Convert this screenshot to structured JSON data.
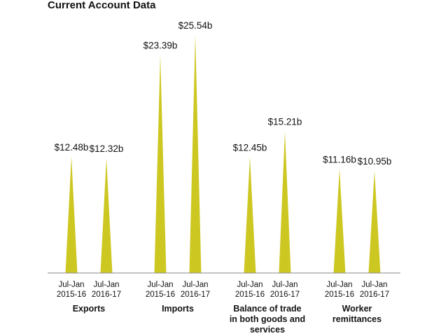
{
  "chart_data": {
    "type": "bar",
    "title": "Current Account Data",
    "categories": [
      [
        "Exports"
      ],
      [
        "Imports"
      ],
      [
        "Balance of trade",
        "in both goods and",
        "services"
      ],
      [
        "Worker",
        "remittances"
      ]
    ],
    "periods": [
      [
        "Jul-Jan",
        "2015-16"
      ],
      [
        "Jul-Jan",
        "2016-17"
      ]
    ],
    "values": [
      [
        12.48,
        12.32
      ],
      [
        23.39,
        25.54
      ],
      [
        12.45,
        15.21
      ],
      [
        11.16,
        10.95
      ]
    ],
    "value_labels": [
      [
        "$12.48b",
        "$12.32b"
      ],
      [
        "$23.39b",
        "$25.54b"
      ],
      [
        "$12.45b",
        "$15.21b"
      ],
      [
        "$11.16b",
        "$10.95b"
      ]
    ],
    "ylim": [
      0,
      25.54
    ],
    "bar_color": "#cdc722",
    "axis_color": "#8a8a8a",
    "grid": false,
    "legend": false
  }
}
